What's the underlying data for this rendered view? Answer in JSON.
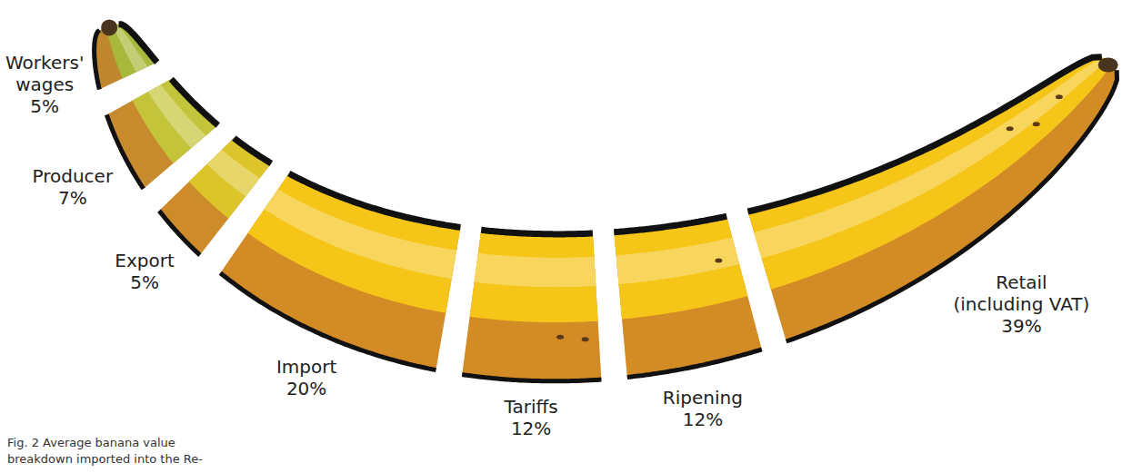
{
  "chart_data": {
    "type": "bar",
    "stacked": true,
    "data_labels": true,
    "caption": "Fig. 2 Average banana value breakdown imported into the Re-",
    "categories": [
      "Workers' wages",
      "Producer",
      "Export",
      "Import",
      "Tariffs",
      "Ripening",
      "Retail (including VAT)"
    ],
    "values": [
      5,
      7,
      5,
      20,
      12,
      12,
      39
    ],
    "value_labels": [
      "5%",
      "7%",
      "5%",
      "20%",
      "12%",
      "12%",
      "39%"
    ],
    "colors": [
      "#a8b83a",
      "#c4c43a",
      "#dcc52a",
      "#f5c518",
      "#f5c518",
      "#f5c518",
      "#f5c518"
    ]
  }
}
